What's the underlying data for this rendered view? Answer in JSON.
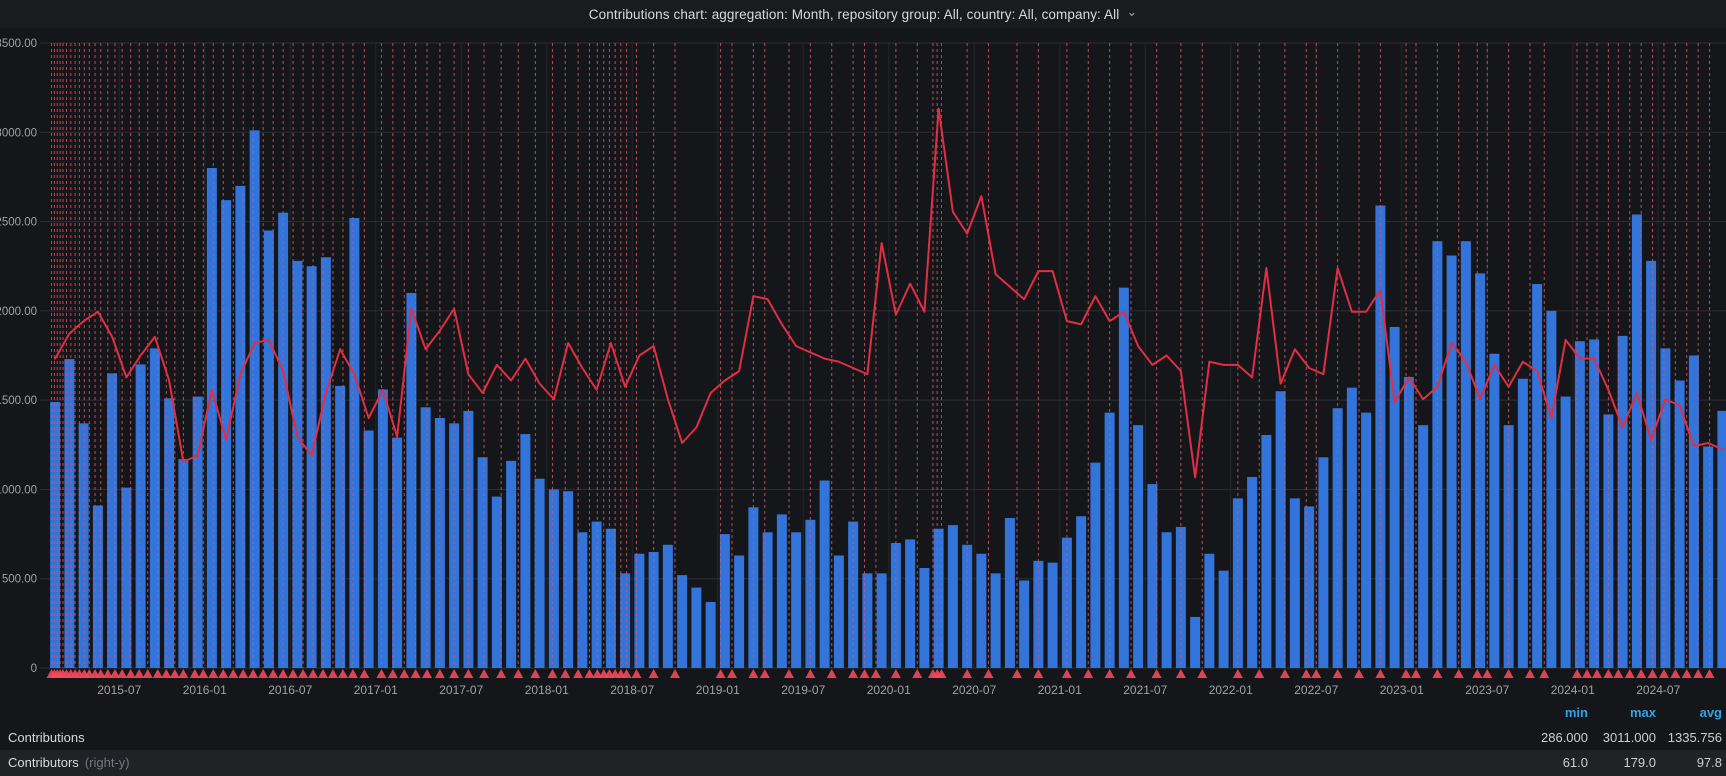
{
  "header": {
    "title": "Contributions chart: aggregation: Month, repository group: All, country: All, company: All",
    "chevron_icon": "⌄"
  },
  "legend": {
    "columns": [
      "min",
      "max",
      "avg"
    ],
    "rows": [
      {
        "label": "Contributions",
        "suffix": "",
        "min": "286.000",
        "max": "3011.000",
        "avg": "1335.756"
      },
      {
        "label": "Contributors",
        "suffix": "(right-y)",
        "min": "61.0",
        "max": "179.0",
        "avg": "97.8"
      }
    ]
  },
  "colors": {
    "background": "#141619",
    "bar": "#3274d9",
    "line": "#e02f44",
    "annotation": "#f2495c",
    "grid": "#2c2f34",
    "grid_vertical": "#232529",
    "axis_text": "#9fa1a6",
    "legend_header": "#33a2e5",
    "row_alt_bg": "#202226"
  },
  "chart_data": {
    "type": "bar+line",
    "title": "Contributions chart: aggregation: Month, repository group: All, country: All, company: All",
    "start_month": "2015-02",
    "months_count": 118,
    "x_tick_labels": [
      "2015-07",
      "2016-01",
      "2016-07",
      "2017-01",
      "2017-07",
      "2018-01",
      "2018-07",
      "2019-01",
      "2019-07",
      "2020-01",
      "2020-07",
      "2021-01",
      "2021-07",
      "2022-01",
      "2022-07",
      "2023-01",
      "2023-07",
      "2024-01",
      "2024-07"
    ],
    "left_axis": {
      "min": 0,
      "max": 3500,
      "step": 500
    },
    "right_axis": {
      "min": 0,
      "max": 200,
      "label": "right-y"
    },
    "grid": true,
    "legend_position": "bottom",
    "series": [
      {
        "name": "Contributions",
        "type": "bars",
        "axis": "left",
        "values": [
          1490,
          1730,
          1370,
          910,
          1650,
          1010,
          1700,
          1790,
          1510,
          1170,
          1520,
          2800,
          2620,
          2700,
          3011,
          2450,
          2550,
          2280,
          2250,
          2300,
          1580,
          2520,
          1330,
          1560,
          1290,
          2100,
          1460,
          1400,
          1370,
          1440,
          1180,
          960,
          1160,
          1310,
          1060,
          1000,
          990,
          760,
          820,
          780,
          530,
          640,
          650,
          690,
          520,
          450,
          370,
          750,
          630,
          900,
          760,
          860,
          760,
          830,
          1050,
          630,
          820,
          530,
          530,
          700,
          720,
          560,
          780,
          800,
          690,
          640,
          530,
          840,
          490,
          600,
          590,
          730,
          850,
          1150,
          1430,
          2130,
          1360,
          1030,
          760,
          790,
          286,
          640,
          545,
          950,
          1070,
          1305,
          1550,
          950,
          905,
          1180,
          1455,
          1570,
          1430,
          2590,
          1910,
          1630,
          1360,
          2390,
          2310,
          2390,
          2210,
          1760,
          1360,
          1620,
          2150,
          2000,
          1520,
          1830,
          1840,
          1420,
          1860,
          2540,
          2280,
          1790,
          1610,
          1750,
          1240,
          1440
        ]
      },
      {
        "name": "Contributors",
        "type": "line",
        "axis": "right",
        "values": [
          99,
          107,
          111,
          114,
          106,
          93,
          100,
          106,
          92,
          66,
          68,
          89,
          73,
          94,
          104,
          105,
          95,
          74,
          68,
          88,
          102,
          94,
          80,
          89,
          74,
          115,
          102,
          108,
          115,
          94,
          88,
          97,
          92,
          99,
          91,
          86,
          104,
          96,
          89,
          104,
          90,
          100,
          103,
          86,
          72,
          77,
          88,
          92,
          95,
          119,
          118,
          110,
          103,
          101,
          99,
          98,
          96,
          94,
          136,
          113,
          123,
          114,
          179,
          146,
          139,
          151,
          126,
          122,
          118,
          127,
          127,
          111,
          110,
          119,
          111,
          114,
          103,
          97,
          100,
          95,
          61,
          98,
          97,
          97,
          93,
          128,
          91,
          102,
          96,
          94,
          128,
          114,
          114,
          121,
          85,
          93,
          86,
          90,
          104,
          98,
          86,
          97,
          90,
          98,
          95,
          80,
          105,
          99,
          99,
          89,
          77,
          88,
          73,
          86,
          84,
          71,
          72,
          70
        ]
      }
    ],
    "annotations_month_index": [
      0.25,
      0.45,
      0.65,
      0.85,
      1.05,
      1.3,
      1.6,
      1.9,
      2.2,
      2.55,
      2.9,
      3.3,
      3.7,
      4.2,
      4.7,
      5.2,
      5.8,
      6.4,
      7.0,
      7.7,
      8.3,
      8.9,
      9.5,
      10.3,
      10.9,
      11.6,
      12.3,
      13.0,
      13.7,
      14.4,
      15.1,
      15.8,
      16.5,
      17.2,
      17.9,
      18.6,
      19.3,
      20.0,
      20.7,
      21.4,
      22.2,
      23.4,
      24.2,
      25.0,
      25.8,
      26.6,
      27.5,
      28.5,
      29.5,
      30.6,
      31.8,
      33.0,
      34.2,
      35.4,
      36.3,
      37.2,
      38.0,
      38.55,
      39.0,
      39.4,
      39.8,
      40.2,
      40.6,
      41.3,
      42.5,
      44.0,
      47.2,
      48.0,
      49.5,
      50.3,
      52.0,
      53.5,
      55.0,
      56.5,
      57.3,
      58.1,
      59.5,
      61.0,
      62.1,
      62.4,
      62.7,
      64.5,
      66.0,
      68.0,
      69.5,
      71.5,
      73.0,
      74.5,
      76.0,
      77.8,
      79.5,
      81.0,
      83.5,
      85.0,
      86.8,
      88.3,
      89.0,
      90.5,
      92.0,
      93.5,
      95.3,
      96.0,
      97.5,
      99.0,
      100.3,
      101.0,
      102.5,
      104.0,
      105.0,
      107.3,
      108.0,
      108.7,
      109.5,
      110.2,
      111.0,
      111.8,
      112.6,
      113.4,
      114.2,
      115.0,
      115.8,
      116.6
    ]
  }
}
